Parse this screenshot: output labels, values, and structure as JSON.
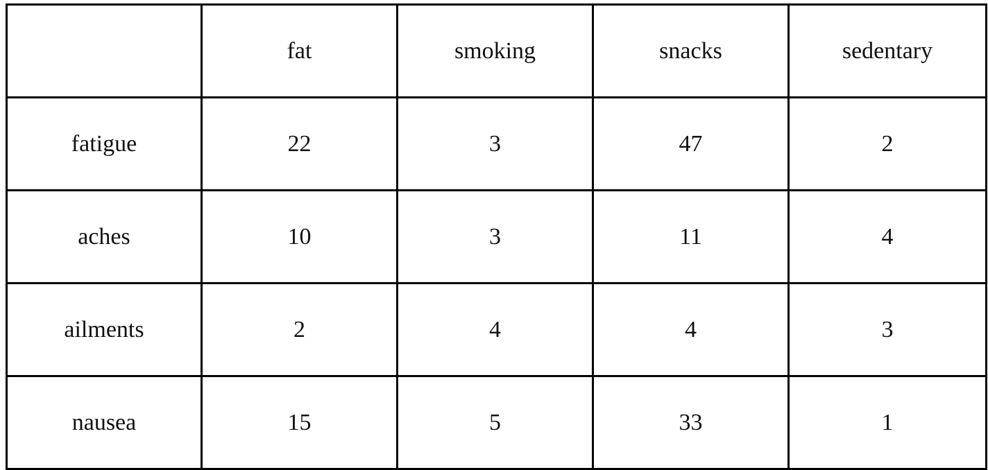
{
  "table": {
    "corner": "",
    "columns": [
      "fat",
      "smoking",
      "snacks",
      "sedentary"
    ],
    "rows": [
      {
        "label": "fatigue",
        "values": [
          "22",
          "3",
          "47",
          "2"
        ]
      },
      {
        "label": "aches",
        "values": [
          "10",
          "3",
          "11",
          "4"
        ]
      },
      {
        "label": "ailments",
        "values": [
          "2",
          "4",
          "4",
          "3"
        ]
      },
      {
        "label": "nausea",
        "values": [
          "15",
          "5",
          "33",
          "1"
        ]
      }
    ]
  }
}
